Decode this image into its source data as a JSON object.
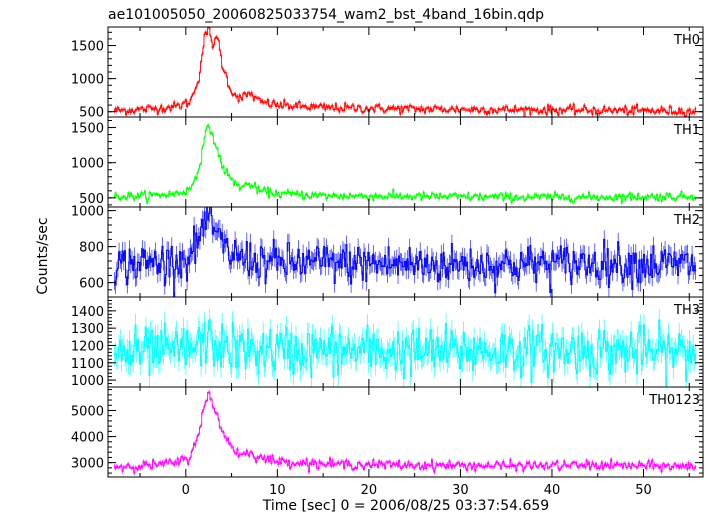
{
  "chart_data": {
    "type": "line",
    "title": "ae101005050_20060825033754_wam2_bst_4band_16bin.qdp",
    "xlabel": "Time [sec] 0 = 2006/08/25 03:37:54.659",
    "ylabel": "Counts/sec",
    "xlim": [
      -8.5,
      56.5
    ],
    "xticks": [
      0,
      10,
      20,
      30,
      40,
      50
    ],
    "grid": false,
    "panels": [
      {
        "name": "TH0",
        "color": "#ff0000",
        "ylim": [
          420,
          1780
        ],
        "yticks": [
          500,
          1000,
          1500
        ],
        "baseline": 500,
        "noise": 35,
        "x": [
          -7,
          -4,
          -1,
          0.5,
          1.5,
          2,
          2.5,
          3,
          3.5,
          4,
          5,
          6,
          7,
          8,
          10,
          15,
          25,
          35,
          45,
          55
        ],
        "values": [
          520,
          540,
          580,
          650,
          1050,
          1600,
          1750,
          1500,
          1620,
          1200,
          800,
          700,
          780,
          650,
          600,
          560,
          540,
          530,
          520,
          510
        ]
      },
      {
        "name": "TH1",
        "color": "#00ff00",
        "ylim": [
          370,
          1650
        ],
        "yticks": [
          500,
          1000,
          1500
        ],
        "baseline": 480,
        "noise": 30,
        "x": [
          -7,
          -4,
          -1,
          0.5,
          1.5,
          2,
          2.5,
          3,
          3.5,
          4,
          5,
          6,
          7,
          8,
          10,
          15,
          25,
          35,
          45,
          55
        ],
        "values": [
          520,
          530,
          560,
          620,
          950,
          1300,
          1560,
          1350,
          1150,
          950,
          750,
          650,
          700,
          600,
          560,
          530,
          520,
          510,
          510,
          520
        ]
      },
      {
        "name": "TH2",
        "color": "#0000ff",
        "ylim": [
          520,
          1020
        ],
        "yticks": [
          600,
          800,
          1000
        ],
        "baseline": 700,
        "noise": 55,
        "x": [
          -7,
          -4,
          -1,
          0.5,
          1.5,
          2,
          2.5,
          3,
          3.5,
          4,
          5,
          6,
          7,
          8,
          10,
          15,
          25,
          35,
          45,
          55
        ],
        "values": [
          700,
          710,
          720,
          740,
          850,
          920,
          980,
          900,
          850,
          800,
          760,
          740,
          730,
          720,
          710,
          710,
          700,
          700,
          710,
          700
        ]
      },
      {
        "name": "TH3",
        "color": "#00ffff",
        "ylim": [
          960,
          1480
        ],
        "yticks": [
          1000,
          1100,
          1200,
          1300,
          1400
        ],
        "baseline": 1170,
        "noise": 70,
        "x": [
          -7,
          -4,
          -1,
          0.5,
          1.5,
          2,
          2.5,
          3,
          3.5,
          4,
          5,
          6,
          7,
          8,
          10,
          15,
          25,
          35,
          45,
          55
        ],
        "values": [
          1150,
          1160,
          1170,
          1180,
          1200,
          1230,
          1220,
          1210,
          1200,
          1190,
          1180,
          1175,
          1170,
          1170,
          1170,
          1170,
          1165,
          1170,
          1170,
          1160
        ]
      },
      {
        "name": "TH0123",
        "color": "#ff00ff",
        "ylim": [
          2450,
          5900
        ],
        "yticks": [
          3000,
          4000,
          5000
        ],
        "baseline": 2900,
        "noise": 90,
        "x": [
          -7,
          -4,
          -1,
          0.5,
          1.5,
          2,
          2.5,
          3,
          3.5,
          4,
          5,
          6,
          7,
          8,
          10,
          15,
          25,
          35,
          45,
          55
        ],
        "values": [
          2850,
          2900,
          3000,
          3200,
          4300,
          5100,
          5650,
          5100,
          4800,
          4200,
          3600,
          3300,
          3400,
          3200,
          3050,
          2950,
          2900,
          2880,
          2900,
          2850
        ]
      }
    ]
  }
}
